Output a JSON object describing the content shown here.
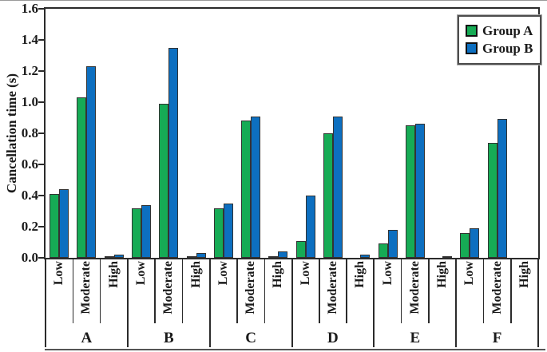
{
  "figure": {
    "kind": "static-chart-screenshot"
  },
  "chart_data": {
    "type": "bar",
    "title": "",
    "xlabel": "",
    "ylabel": "Cancellation time (s)",
    "ylim": [
      0,
      1.6
    ],
    "ytick_step": 0.2,
    "grid": false,
    "legend_position": "top-right-inside",
    "groups": [
      "A",
      "B",
      "C",
      "D",
      "E",
      "F"
    ],
    "categories": [
      "Low",
      "Moderate",
      "High"
    ],
    "series": [
      {
        "name": "Group A",
        "color": "#16ab55",
        "values": [
          [
            0.41,
            1.03,
            0.01
          ],
          [
            0.32,
            0.99,
            0.01
          ],
          [
            0.32,
            0.88,
            0.01
          ],
          [
            0.11,
            0.8,
            0.0
          ],
          [
            0.09,
            0.85,
            0.0
          ],
          [
            0.16,
            0.74,
            0.0
          ]
        ]
      },
      {
        "name": "Group B",
        "color": "#0d6fc0",
        "values": [
          [
            0.44,
            1.23,
            0.02
          ],
          [
            0.34,
            1.35,
            0.03
          ],
          [
            0.35,
            0.91,
            0.04
          ],
          [
            0.4,
            0.91,
            0.02
          ],
          [
            0.18,
            0.86,
            0.01
          ],
          [
            0.19,
            0.89,
            0.0
          ]
        ]
      }
    ],
    "bar_outline_color": "#333333",
    "axis_color": "#2b2b2b",
    "background_color": "#ffffff"
  }
}
